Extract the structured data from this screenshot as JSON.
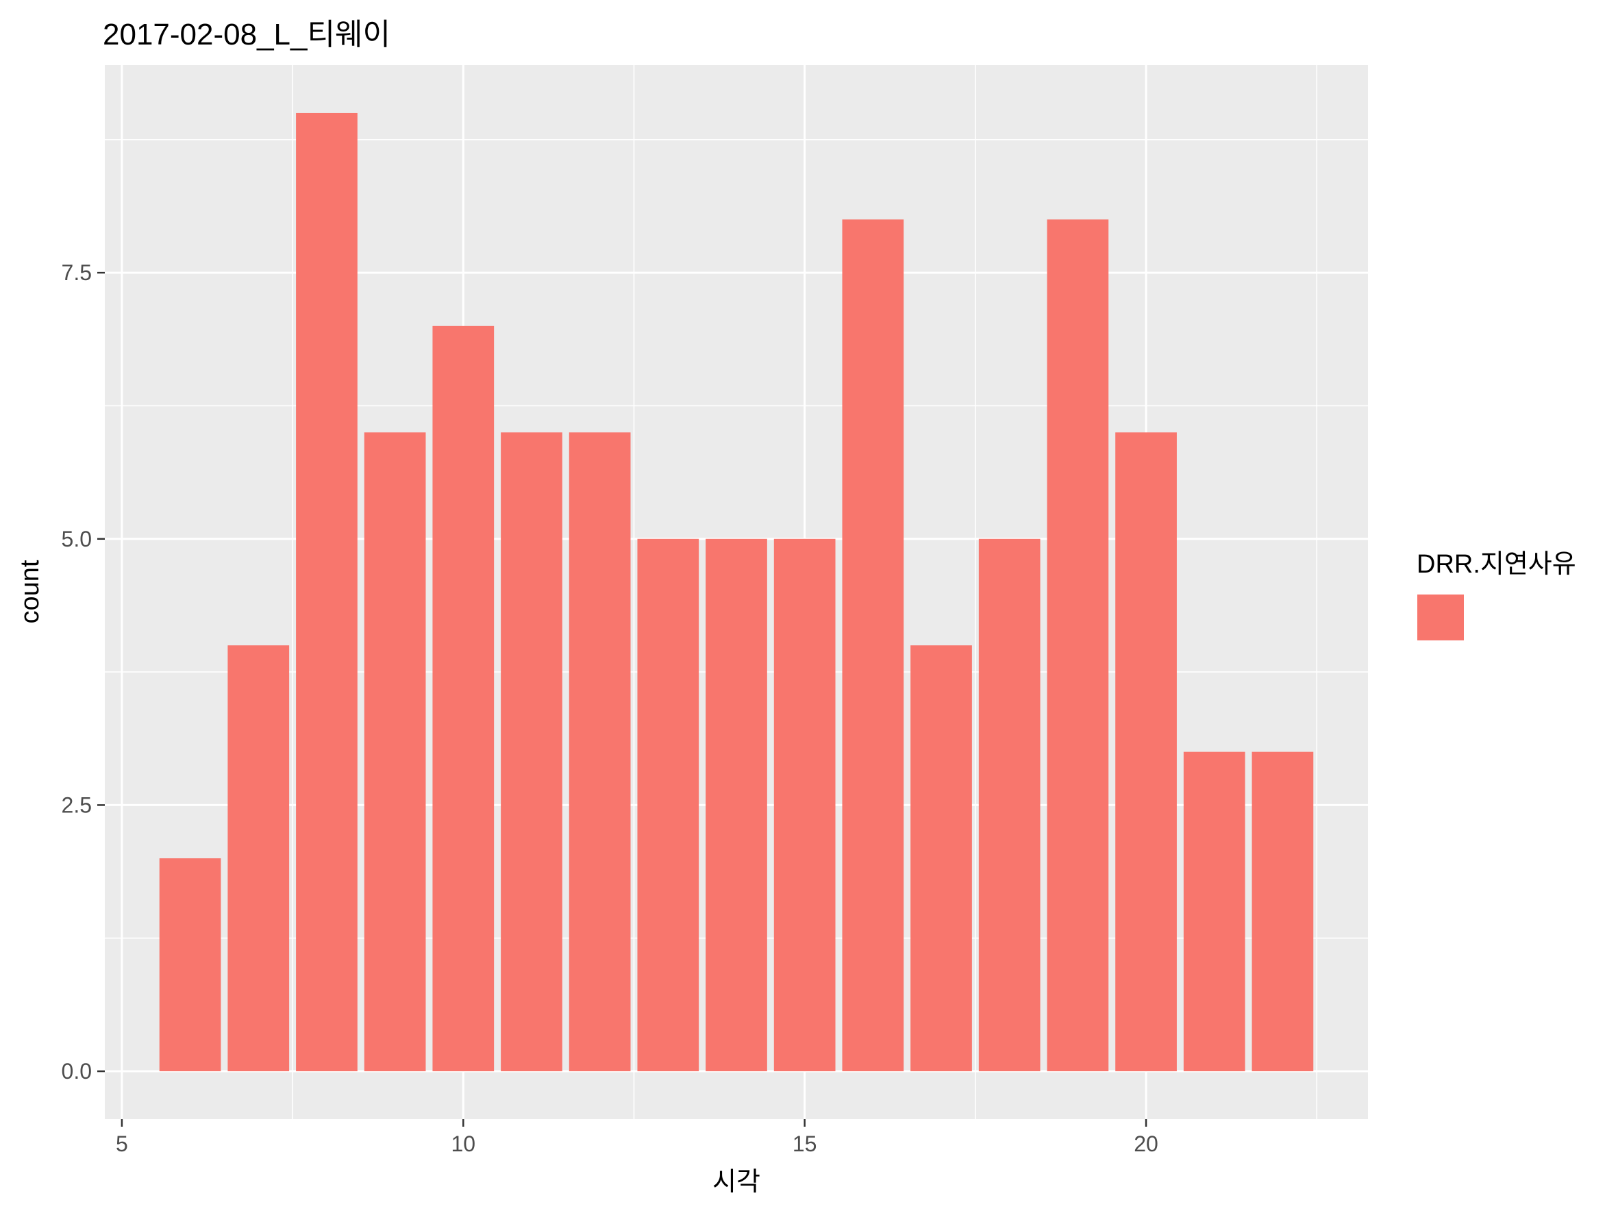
{
  "chart_data": {
    "type": "bar",
    "title": "2017-02-08_L_티웨이",
    "xlabel": "시각",
    "ylabel": "count",
    "x": [
      6,
      7,
      8,
      9,
      10,
      11,
      12,
      13,
      14,
      15,
      16,
      17,
      18,
      19,
      20,
      21,
      22
    ],
    "values": [
      2,
      4,
      9,
      6,
      7,
      6,
      6,
      5,
      5,
      5,
      8,
      4,
      5,
      8,
      6,
      3,
      3
    ],
    "xlim": [
      4.75,
      23.25
    ],
    "ylim": [
      -0.45,
      9.45
    ],
    "x_ticks": [
      5,
      10,
      15,
      20
    ],
    "x_tick_labels": [
      "5",
      "10",
      "15",
      "20"
    ],
    "y_ticks": [
      0,
      2.5,
      5,
      7.5
    ],
    "y_tick_labels": [
      "0.0",
      "2.5",
      "5.0",
      "7.5"
    ],
    "grid": true,
    "legend": {
      "title": "DRR.지연사유",
      "placement": "right",
      "entries": [
        {
          "label": "",
          "color": "#F8766D"
        }
      ]
    },
    "colors": {
      "bar": "#F8766D",
      "panel": "#EBEBEB",
      "grid": "#FFFFFF",
      "tick": "#333333"
    }
  }
}
